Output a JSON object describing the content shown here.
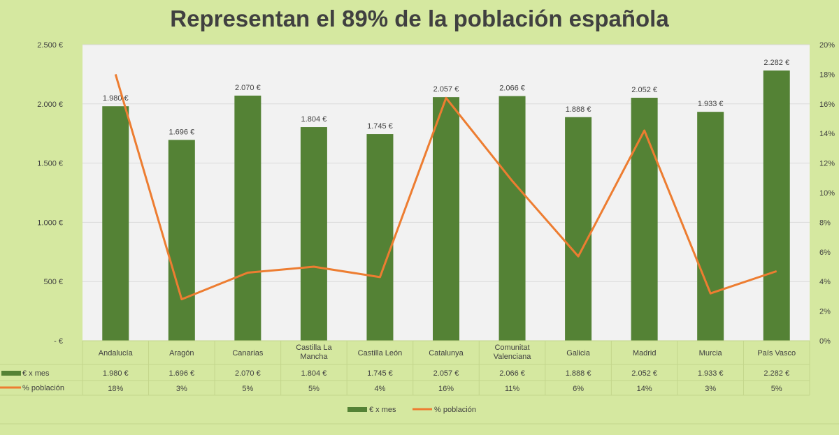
{
  "chart_data": {
    "type": "bar+line",
    "title": "Representan el 89% de la población española",
    "categories": [
      "Andalucía",
      "Aragón",
      "Canarias",
      "Castilla La Mancha",
      "Castilla León",
      "Catalunya",
      "Comunitat Valenciana",
      "Galicia",
      "Madrid",
      "Murcia",
      "País Vasco"
    ],
    "series": [
      {
        "name": "€ x mes",
        "type": "bar",
        "axis": "left",
        "color": "#548235",
        "values": [
          1980,
          1696,
          2070,
          1804,
          1745,
          2057,
          2066,
          1888,
          2052,
          1933,
          2282
        ],
        "labels": [
          "1.980 €",
          "1.696 €",
          "2.070 €",
          "1.804 €",
          "1.745 €",
          "2.057 €",
          "2.066 €",
          "1.888 €",
          "2.052 €",
          "1.933 €",
          "2.282 €"
        ]
      },
      {
        "name": "% población",
        "type": "line",
        "axis": "right",
        "color": "#ed7d31",
        "values": [
          18,
          2.8,
          4.6,
          5,
          4.3,
          16.4,
          10.8,
          5.7,
          14.2,
          3.2,
          4.7
        ],
        "labels": [
          "18%",
          "3%",
          "5%",
          "5%",
          "4%",
          "16%",
          "11%",
          "6%",
          "14%",
          "3%",
          "5%"
        ]
      }
    ],
    "y_left": {
      "range": [
        0,
        2500
      ],
      "ticks": [
        0,
        500,
        1000,
        1500,
        2000,
        2500
      ],
      "tick_labels": [
        "-  €",
        "500 €",
        "1.000 €",
        "1.500 €",
        "2.000 €",
        "2.500 €"
      ]
    },
    "y_right": {
      "range": [
        0,
        20
      ],
      "ticks": [
        0,
        2,
        4,
        6,
        8,
        10,
        12,
        14,
        16,
        18,
        20
      ],
      "tick_labels": [
        "0%",
        "2%",
        "4%",
        "6%",
        "8%",
        "10%",
        "12%",
        "14%",
        "16%",
        "18%",
        "20%"
      ]
    },
    "grid": true,
    "data_table": true,
    "legend": "bottom",
    "colors": {
      "background": "#d5e8a0",
      "plot": "#f2f2f2",
      "bar": "#548235",
      "line": "#ed7d31"
    }
  }
}
